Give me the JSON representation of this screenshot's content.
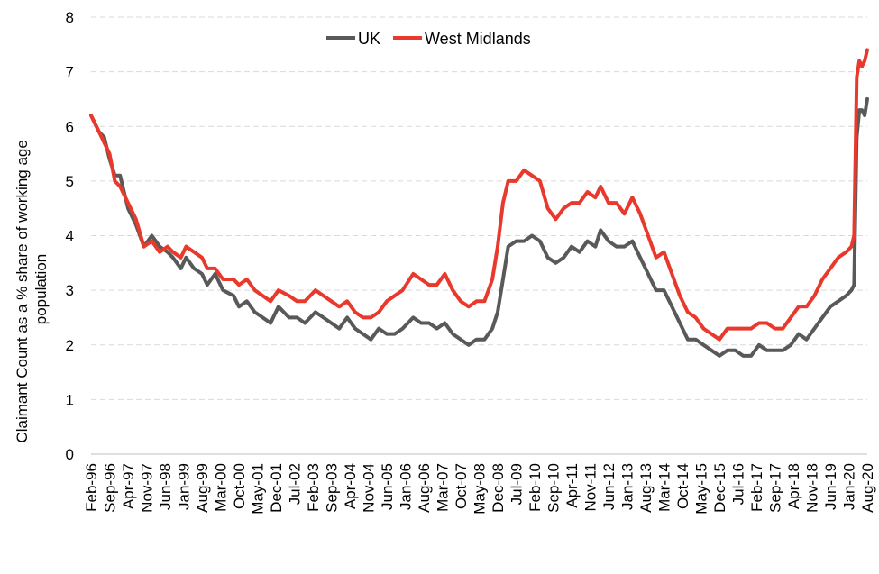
{
  "chart_data": {
    "type": "line",
    "title": "",
    "xlabel": "",
    "ylabel": "Claimant Count as a % share of working age population",
    "ylim": [
      0,
      8
    ],
    "yticks": [
      0,
      1,
      2,
      3,
      4,
      5,
      6,
      7,
      8
    ],
    "grid": "horizontal dashed",
    "legend_position": "top-center",
    "x_start": "1996-02",
    "x_end": "2020-08",
    "xtick_labels": [
      "Feb-96",
      "Sep-96",
      "Apr-97",
      "Nov-97",
      "Jun-98",
      "Jan-99",
      "Aug-99",
      "Mar-00",
      "Oct-00",
      "May-01",
      "Dec-01",
      "Jul-02",
      "Feb-03",
      "Sep-03",
      "Apr-04",
      "Nov-04",
      "Jun-05",
      "Jan-06",
      "Aug-06",
      "Mar-07",
      "Oct-07",
      "May-08",
      "Dec-08",
      "Jul-09",
      "Feb-10",
      "Sep-10",
      "Apr-11",
      "Nov-11",
      "Jun-12",
      "Jan-13",
      "Aug-13",
      "Mar-14",
      "Oct-14",
      "May-15",
      "Dec-15",
      "Jul-16",
      "Feb-17",
      "Sep-17",
      "Apr-18",
      "Nov-18",
      "Jun-19",
      "Jan-20",
      "Aug-20"
    ],
    "series": [
      {
        "name": "UK",
        "color": "#595959",
        "points": [
          [
            "1996-02",
            6.2
          ],
          [
            "1996-05",
            5.9
          ],
          [
            "1996-07",
            5.8
          ],
          [
            "1996-09",
            5.4
          ],
          [
            "1996-11",
            5.1
          ],
          [
            "1997-01",
            5.1
          ],
          [
            "1997-04",
            4.5
          ],
          [
            "1997-07",
            4.2
          ],
          [
            "1997-10",
            3.8
          ],
          [
            "1998-01",
            4.0
          ],
          [
            "1998-04",
            3.8
          ],
          [
            "1998-07",
            3.7
          ],
          [
            "1998-09",
            3.6
          ],
          [
            "1998-12",
            3.4
          ],
          [
            "1999-02",
            3.6
          ],
          [
            "1999-05",
            3.4
          ],
          [
            "1999-08",
            3.3
          ],
          [
            "1999-10",
            3.1
          ],
          [
            "2000-01",
            3.3
          ],
          [
            "2000-04",
            3.0
          ],
          [
            "2000-08",
            2.9
          ],
          [
            "2000-10",
            2.7
          ],
          [
            "2001-01",
            2.8
          ],
          [
            "2001-04",
            2.6
          ],
          [
            "2001-07",
            2.5
          ],
          [
            "2001-10",
            2.4
          ],
          [
            "2002-01",
            2.7
          ],
          [
            "2002-05",
            2.5
          ],
          [
            "2002-08",
            2.5
          ],
          [
            "2002-11",
            2.4
          ],
          [
            "2003-03",
            2.6
          ],
          [
            "2003-06",
            2.5
          ],
          [
            "2003-09",
            2.4
          ],
          [
            "2003-12",
            2.3
          ],
          [
            "2004-03",
            2.5
          ],
          [
            "2004-06",
            2.3
          ],
          [
            "2004-09",
            2.2
          ],
          [
            "2004-12",
            2.1
          ],
          [
            "2005-03",
            2.3
          ],
          [
            "2005-06",
            2.2
          ],
          [
            "2005-09",
            2.2
          ],
          [
            "2005-12",
            2.3
          ],
          [
            "2006-04",
            2.5
          ],
          [
            "2006-07",
            2.4
          ],
          [
            "2006-10",
            2.4
          ],
          [
            "2007-01",
            2.3
          ],
          [
            "2007-04",
            2.4
          ],
          [
            "2007-07",
            2.2
          ],
          [
            "2007-10",
            2.1
          ],
          [
            "2008-01",
            2.0
          ],
          [
            "2008-04",
            2.1
          ],
          [
            "2008-07",
            2.1
          ],
          [
            "2008-10",
            2.3
          ],
          [
            "2008-12",
            2.6
          ],
          [
            "2009-02",
            3.2
          ],
          [
            "2009-04",
            3.8
          ],
          [
            "2009-07",
            3.9
          ],
          [
            "2009-10",
            3.9
          ],
          [
            "2010-01",
            4.0
          ],
          [
            "2010-04",
            3.9
          ],
          [
            "2010-07",
            3.6
          ],
          [
            "2010-10",
            3.5
          ],
          [
            "2011-01",
            3.6
          ],
          [
            "2011-04",
            3.8
          ],
          [
            "2011-07",
            3.7
          ],
          [
            "2011-10",
            3.9
          ],
          [
            "2012-01",
            3.8
          ],
          [
            "2012-03",
            4.1
          ],
          [
            "2012-06",
            3.9
          ],
          [
            "2012-09",
            3.8
          ],
          [
            "2012-12",
            3.8
          ],
          [
            "2013-03",
            3.9
          ],
          [
            "2013-06",
            3.6
          ],
          [
            "2013-09",
            3.3
          ],
          [
            "2013-12",
            3.0
          ],
          [
            "2014-03",
            3.0
          ],
          [
            "2014-06",
            2.7
          ],
          [
            "2014-09",
            2.4
          ],
          [
            "2014-12",
            2.1
          ],
          [
            "2015-03",
            2.1
          ],
          [
            "2015-06",
            2.0
          ],
          [
            "2015-09",
            1.9
          ],
          [
            "2015-12",
            1.8
          ],
          [
            "2016-03",
            1.9
          ],
          [
            "2016-06",
            1.9
          ],
          [
            "2016-09",
            1.8
          ],
          [
            "2016-12",
            1.8
          ],
          [
            "2017-03",
            2.0
          ],
          [
            "2017-06",
            1.9
          ],
          [
            "2017-09",
            1.9
          ],
          [
            "2017-12",
            1.9
          ],
          [
            "2018-03",
            2.0
          ],
          [
            "2018-06",
            2.2
          ],
          [
            "2018-09",
            2.1
          ],
          [
            "2018-12",
            2.3
          ],
          [
            "2019-03",
            2.5
          ],
          [
            "2019-06",
            2.7
          ],
          [
            "2019-09",
            2.8
          ],
          [
            "2019-12",
            2.9
          ],
          [
            "2020-02",
            3.0
          ],
          [
            "2020-03",
            3.1
          ],
          [
            "2020-04",
            5.8
          ],
          [
            "2020-05",
            6.3
          ],
          [
            "2020-06",
            6.3
          ],
          [
            "2020-07",
            6.2
          ],
          [
            "2020-08",
            6.5
          ]
        ]
      },
      {
        "name": "West Midlands",
        "color": "#e8392c",
        "points": [
          [
            "1996-02",
            6.2
          ],
          [
            "1996-05",
            5.9
          ],
          [
            "1996-07",
            5.7
          ],
          [
            "1996-09",
            5.5
          ],
          [
            "1996-11",
            5.0
          ],
          [
            "1997-01",
            4.9
          ],
          [
            "1997-04",
            4.6
          ],
          [
            "1997-07",
            4.3
          ],
          [
            "1997-10",
            3.8
          ],
          [
            "1998-01",
            3.9
          ],
          [
            "1998-04",
            3.7
          ],
          [
            "1998-07",
            3.8
          ],
          [
            "1998-09",
            3.7
          ],
          [
            "1998-12",
            3.6
          ],
          [
            "1999-02",
            3.8
          ],
          [
            "1999-05",
            3.7
          ],
          [
            "1999-08",
            3.6
          ],
          [
            "1999-10",
            3.4
          ],
          [
            "2000-01",
            3.4
          ],
          [
            "2000-04",
            3.2
          ],
          [
            "2000-08",
            3.2
          ],
          [
            "2000-10",
            3.1
          ],
          [
            "2001-01",
            3.2
          ],
          [
            "2001-04",
            3.0
          ],
          [
            "2001-07",
            2.9
          ],
          [
            "2001-10",
            2.8
          ],
          [
            "2002-01",
            3.0
          ],
          [
            "2002-05",
            2.9
          ],
          [
            "2002-08",
            2.8
          ],
          [
            "2002-11",
            2.8
          ],
          [
            "2003-03",
            3.0
          ],
          [
            "2003-06",
            2.9
          ],
          [
            "2003-09",
            2.8
          ],
          [
            "2003-12",
            2.7
          ],
          [
            "2004-03",
            2.8
          ],
          [
            "2004-06",
            2.6
          ],
          [
            "2004-09",
            2.5
          ],
          [
            "2004-12",
            2.5
          ],
          [
            "2005-03",
            2.6
          ],
          [
            "2005-06",
            2.8
          ],
          [
            "2005-09",
            2.9
          ],
          [
            "2005-12",
            3.0
          ],
          [
            "2006-04",
            3.3
          ],
          [
            "2006-07",
            3.2
          ],
          [
            "2006-10",
            3.1
          ],
          [
            "2007-01",
            3.1
          ],
          [
            "2007-04",
            3.3
          ],
          [
            "2007-07",
            3.0
          ],
          [
            "2007-10",
            2.8
          ],
          [
            "2008-01",
            2.7
          ],
          [
            "2008-04",
            2.8
          ],
          [
            "2008-07",
            2.8
          ],
          [
            "2008-10",
            3.2
          ],
          [
            "2008-12",
            3.8
          ],
          [
            "2009-02",
            4.6
          ],
          [
            "2009-04",
            5.0
          ],
          [
            "2009-07",
            5.0
          ],
          [
            "2009-10",
            5.2
          ],
          [
            "2010-01",
            5.1
          ],
          [
            "2010-04",
            5.0
          ],
          [
            "2010-07",
            4.5
          ],
          [
            "2010-10",
            4.3
          ],
          [
            "2011-01",
            4.5
          ],
          [
            "2011-04",
            4.6
          ],
          [
            "2011-07",
            4.6
          ],
          [
            "2011-10",
            4.8
          ],
          [
            "2012-01",
            4.7
          ],
          [
            "2012-03",
            4.9
          ],
          [
            "2012-06",
            4.6
          ],
          [
            "2012-09",
            4.6
          ],
          [
            "2012-12",
            4.4
          ],
          [
            "2013-03",
            4.7
          ],
          [
            "2013-06",
            4.4
          ],
          [
            "2013-09",
            4.0
          ],
          [
            "2013-12",
            3.6
          ],
          [
            "2014-03",
            3.7
          ],
          [
            "2014-06",
            3.3
          ],
          [
            "2014-09",
            2.9
          ],
          [
            "2014-12",
            2.6
          ],
          [
            "2015-03",
            2.5
          ],
          [
            "2015-06",
            2.3
          ],
          [
            "2015-09",
            2.2
          ],
          [
            "2015-12",
            2.1
          ],
          [
            "2016-03",
            2.3
          ],
          [
            "2016-06",
            2.3
          ],
          [
            "2016-09",
            2.3
          ],
          [
            "2016-12",
            2.3
          ],
          [
            "2017-03",
            2.4
          ],
          [
            "2017-06",
            2.4
          ],
          [
            "2017-09",
            2.3
          ],
          [
            "2017-12",
            2.3
          ],
          [
            "2018-03",
            2.5
          ],
          [
            "2018-06",
            2.7
          ],
          [
            "2018-09",
            2.7
          ],
          [
            "2018-12",
            2.9
          ],
          [
            "2019-03",
            3.2
          ],
          [
            "2019-06",
            3.4
          ],
          [
            "2019-09",
            3.6
          ],
          [
            "2019-12",
            3.7
          ],
          [
            "2020-02",
            3.8
          ],
          [
            "2020-03",
            4.0
          ],
          [
            "2020-04",
            6.9
          ],
          [
            "2020-05",
            7.2
          ],
          [
            "2020-06",
            7.1
          ],
          [
            "2020-07",
            7.2
          ],
          [
            "2020-08",
            7.4
          ]
        ]
      }
    ]
  }
}
